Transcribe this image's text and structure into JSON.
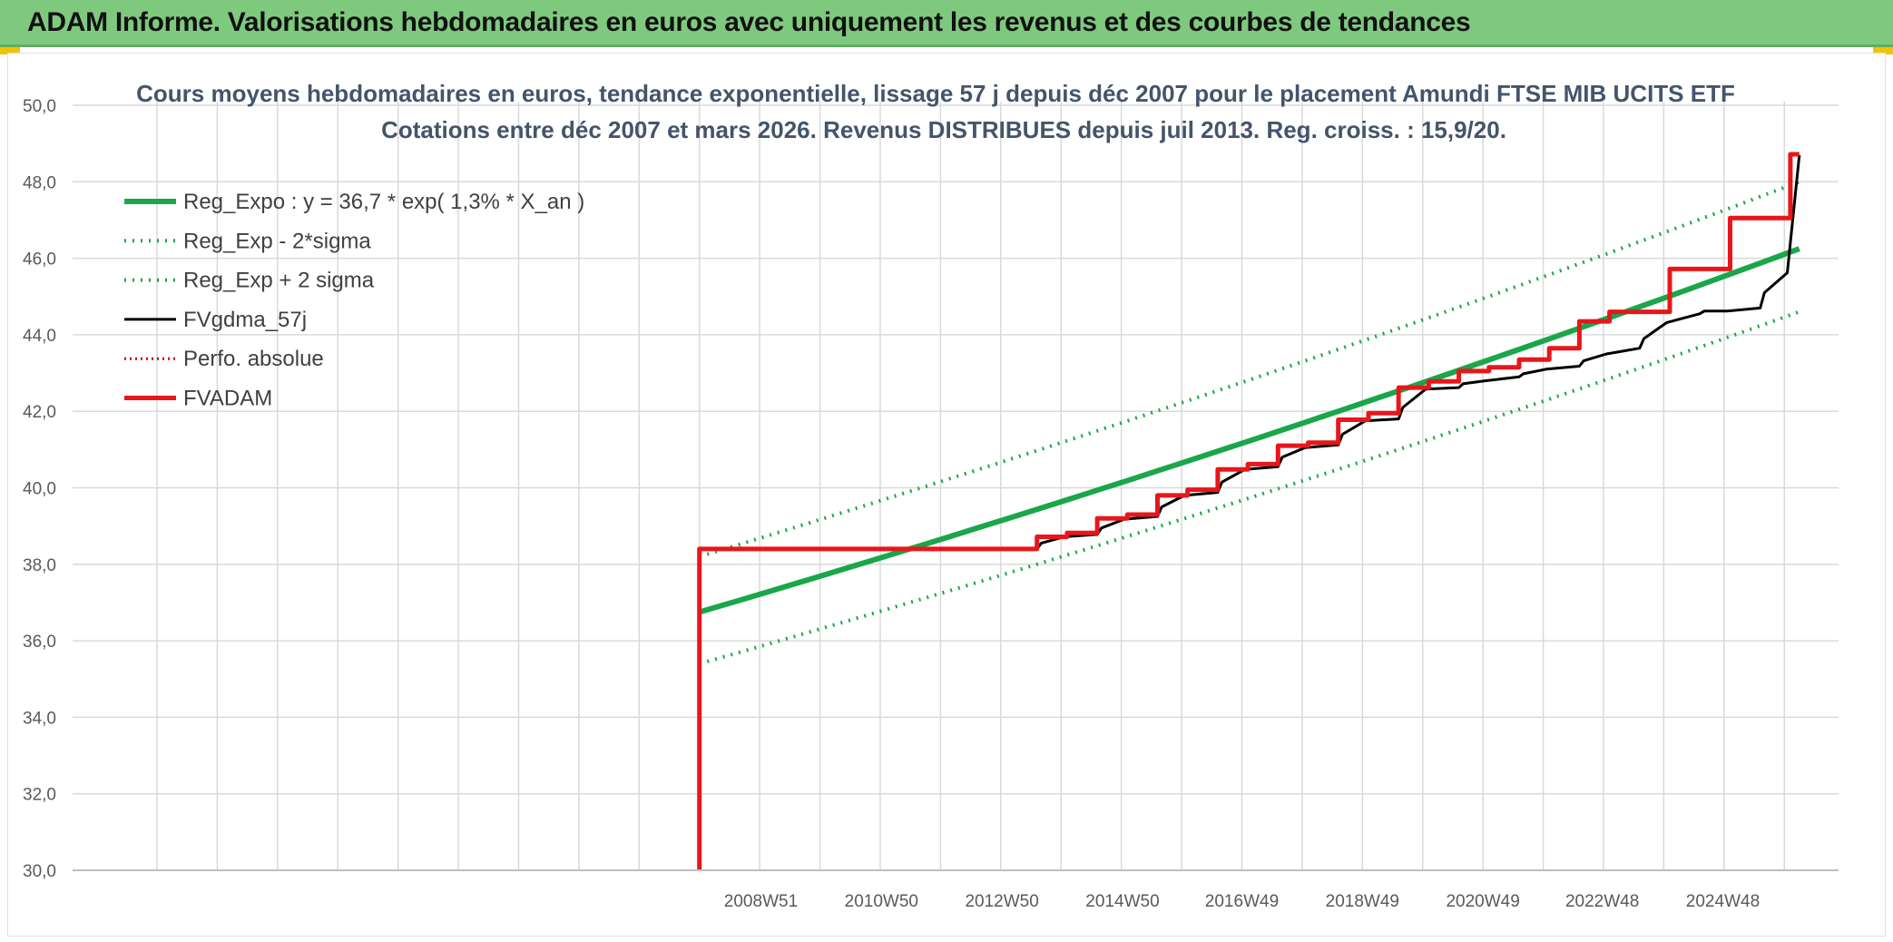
{
  "header": {
    "title": "ADAM Informe. Valorisations hebdomadaires en euros avec uniquement les revenus et des courbes de tendances"
  },
  "colors": {
    "banner": "#7fc97f",
    "regression": "#1aa64a",
    "sigma": "#1aa64a",
    "fvgdma": "#000000",
    "perfo": "#cc0000",
    "fvadam": "#e8161b",
    "grid": "#d9d9d9",
    "title": "#44546a"
  },
  "chart_data": {
    "type": "line",
    "title": [
      "Cours moyens hebdomadaires en euros, tendance exponentielle, lissage 57 j depuis déc 2007 pour le placement Amundi FTSE MIB UCITS ETF",
      "Cotations entre déc 2007 et mars 2026. Revenus DISTRIBUES depuis juil 2013. Reg. croiss. : 15,9/20."
    ],
    "x_tick_labels": [
      "2008W51",
      "2010W50",
      "2012W50",
      "2014W50",
      "2016W49",
      "2018W49",
      "2020W49",
      "2022W48",
      "2024W48"
    ],
    "x_tick_years": [
      2008.97,
      2010.97,
      2012.97,
      2014.97,
      2016.95,
      2018.95,
      2020.95,
      2022.93,
      2024.93
    ],
    "y_tick_labels": [
      "30,0",
      "32,0",
      "34,0",
      "36,0",
      "38,0",
      "40,0",
      "42,0",
      "44,0",
      "46,0",
      "48,0",
      "50,0"
    ],
    "ylim": [
      30,
      50
    ],
    "grid": true,
    "legend_position": "top-left",
    "series": [
      {
        "name": "Reg_Expo : y = 36,7 * exp( 1,3% *  X_an )",
        "style": "solid-thick",
        "x": [
          2007.95,
          2026.2
        ],
        "y": [
          36.75,
          46.25
        ]
      },
      {
        "name": "Reg_Exp - 2*sigma",
        "style": "dotted",
        "x": [
          2007.95,
          2026.2
        ],
        "y": [
          35.4,
          44.6
        ]
      },
      {
        "name": "Reg_Exp + 2 sigma",
        "style": "dotted",
        "x": [
          2007.95,
          2026.2
        ],
        "y": [
          38.2,
          48.0
        ]
      },
      {
        "name": "FVgdma_57j",
        "style": "solid-thin",
        "x": [
          2007.95,
          2013.55,
          2013.62,
          2014.0,
          2014.55,
          2014.62,
          2015.0,
          2015.55,
          2015.62,
          2016.0,
          2016.55,
          2016.62,
          2017.0,
          2017.55,
          2017.62,
          2018.0,
          2018.55,
          2018.62,
          2019.0,
          2019.55,
          2019.62,
          2020.0,
          2020.55,
          2020.62,
          2021.0,
          2021.55,
          2021.62,
          2022.0,
          2022.55,
          2022.62,
          2023.0,
          2023.55,
          2023.62,
          2024.0,
          2024.55,
          2024.62,
          2025.0,
          2025.55,
          2025.62,
          2026.0,
          2026.2
        ],
        "y": [
          38.4,
          38.4,
          38.55,
          38.72,
          38.78,
          38.95,
          39.18,
          39.25,
          39.5,
          39.8,
          39.88,
          40.15,
          40.48,
          40.55,
          40.8,
          41.05,
          41.12,
          41.4,
          41.75,
          41.8,
          42.1,
          42.58,
          42.62,
          42.72,
          42.8,
          42.9,
          42.98,
          43.1,
          43.18,
          43.32,
          43.5,
          43.65,
          43.9,
          44.32,
          44.55,
          44.62,
          44.62,
          44.7,
          45.1,
          45.62,
          48.7
        ],
        "note_end": [
          2025.55,
          2025.62,
          2026.0,
          2026.1,
          2026.2
        ]
      },
      {
        "name": "Perfo. absolue",
        "style": "dotted",
        "x": [],
        "y": []
      },
      {
        "name": "FVADAM",
        "style": "step-thick",
        "x": [
          2007.95,
          2007.95,
          2013.55,
          2013.55,
          2014.05,
          2014.05,
          2014.55,
          2014.55,
          2015.05,
          2015.05,
          2015.55,
          2015.55,
          2016.05,
          2016.05,
          2016.55,
          2016.55,
          2017.05,
          2017.05,
          2017.55,
          2017.55,
          2018.05,
          2018.05,
          2018.55,
          2018.55,
          2019.05,
          2019.05,
          2019.55,
          2019.55,
          2020.05,
          2020.05,
          2020.55,
          2020.55,
          2021.05,
          2021.05,
          2021.55,
          2021.55,
          2022.05,
          2022.05,
          2022.55,
          2022.55,
          2023.05,
          2023.05,
          2023.55,
          2023.55,
          2024.05,
          2024.05,
          2024.55,
          2024.55,
          2025.05,
          2025.05,
          2025.55,
          2025.55,
          2026.05,
          2026.05,
          2026.2
        ],
        "y": [
          30.0,
          38.4,
          38.4,
          38.72,
          38.72,
          38.82,
          38.82,
          39.2,
          39.2,
          39.3,
          39.3,
          39.8,
          39.8,
          39.95,
          39.95,
          40.48,
          40.48,
          40.62,
          40.62,
          41.1,
          41.1,
          41.18,
          41.18,
          41.78,
          41.78,
          41.95,
          41.95,
          42.62,
          42.62,
          42.78,
          42.78,
          43.05,
          43.05,
          43.15,
          43.15,
          43.35,
          43.35,
          43.65,
          43.65,
          44.35,
          44.35,
          44.6,
          44.6,
          44.6,
          44.6,
          45.72,
          45.72,
          45.72,
          45.72,
          47.05,
          47.05,
          47.05,
          47.05,
          48.72,
          48.72
        ]
      }
    ]
  }
}
